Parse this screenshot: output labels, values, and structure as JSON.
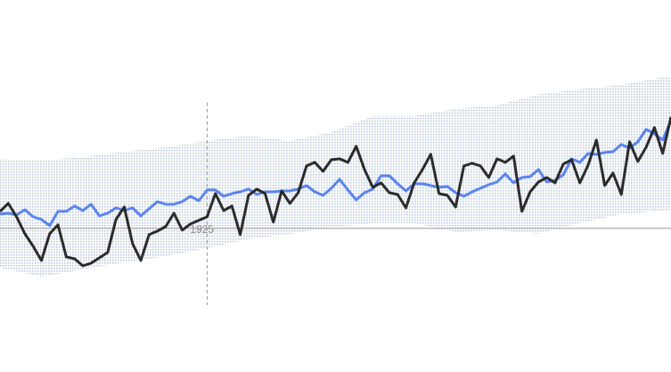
{
  "chart_data": {
    "type": "line",
    "x": [
      1900,
      1901,
      1902,
      1903,
      1904,
      1905,
      1906,
      1907,
      1908,
      1909,
      1910,
      1911,
      1912,
      1913,
      1914,
      1915,
      1916,
      1917,
      1918,
      1919,
      1920,
      1921,
      1922,
      1923,
      1924,
      1925,
      1926,
      1927,
      1928,
      1929,
      1930,
      1931,
      1932,
      1933,
      1934,
      1935,
      1936,
      1937,
      1938,
      1939,
      1940,
      1941,
      1942,
      1943,
      1944,
      1945,
      1946,
      1947,
      1948,
      1949,
      1950,
      1951,
      1952,
      1953,
      1954,
      1955,
      1956,
      1957,
      1958,
      1959,
      1960,
      1961,
      1962,
      1963,
      1964,
      1965,
      1966,
      1967,
      1968,
      1969,
      1970,
      1971,
      1972,
      1973,
      1974,
      1975,
      1976,
      1977,
      1978,
      1979,
      1980,
      1981
    ],
    "series": [
      {
        "color": "#5b84f0",
        "values": [
          16,
          17,
          15,
          21,
          13,
          10,
          3,
          19,
          19,
          25,
          20,
          27,
          14,
          17,
          23,
          20,
          23,
          14,
          22,
          30,
          27,
          27,
          30,
          36,
          31,
          43,
          43,
          36,
          39,
          41,
          44,
          38,
          41,
          41,
          42,
          42,
          44,
          48,
          41,
          37,
          45,
          55,
          43,
          32,
          40,
          44,
          59,
          59,
          50,
          42,
          50,
          50,
          48,
          46,
          47,
          40,
          36,
          41,
          45,
          49,
          52,
          61,
          51,
          57,
          58,
          66,
          52,
          54,
          60,
          78,
          74,
          84,
          83,
          85,
          86,
          94,
          90,
          97,
          111,
          106,
          99,
          121
        ]
      },
      {
        "color": "#2b2b2b",
        "values": [
          19,
          28,
          13,
          -6,
          -20,
          -36,
          -6,
          4,
          -32,
          -34,
          -42,
          -39,
          -33,
          -27,
          10,
          24,
          -17,
          -36,
          -7,
          -3,
          2,
          17,
          -2,
          5,
          9,
          13,
          39,
          20,
          25,
          -7,
          37,
          44,
          39,
          7,
          42,
          28,
          40,
          70,
          74,
          64,
          77,
          78,
          74,
          92,
          66,
          46,
          51,
          40,
          38,
          23,
          51,
          66,
          83,
          39,
          37,
          24,
          70,
          73,
          70,
          57,
          78,
          74,
          81,
          19,
          41,
          52,
          57,
          51,
          72,
          77,
          51,
          71,
          99,
          48,
          62,
          38,
          97,
          75,
          91,
          113,
          84,
          125
        ]
      }
    ],
    "band": {
      "color": "#b9c6d6",
      "x": [
        1900,
        1905,
        1910,
        1915,
        1920,
        1925,
        1930,
        1935,
        1940,
        1945,
        1950,
        1955,
        1960,
        1965,
        1970,
        1975,
        1980,
        1981
      ],
      "upper": [
        78,
        76,
        80,
        86,
        91,
        98,
        104,
        98,
        108,
        126,
        126,
        134,
        138,
        150,
        156,
        161,
        169,
        171
      ],
      "lower": [
        -44,
        -54,
        -46,
        -38,
        -31,
        -22,
        -12,
        -6,
        1,
        6,
        6,
        -4,
        -2,
        -6,
        6,
        16,
        20,
        21
      ]
    },
    "xlim": [
      1900,
      1981
    ],
    "ylim": [
      -161,
      256
    ],
    "xticks": [
      1925
    ]
  }
}
